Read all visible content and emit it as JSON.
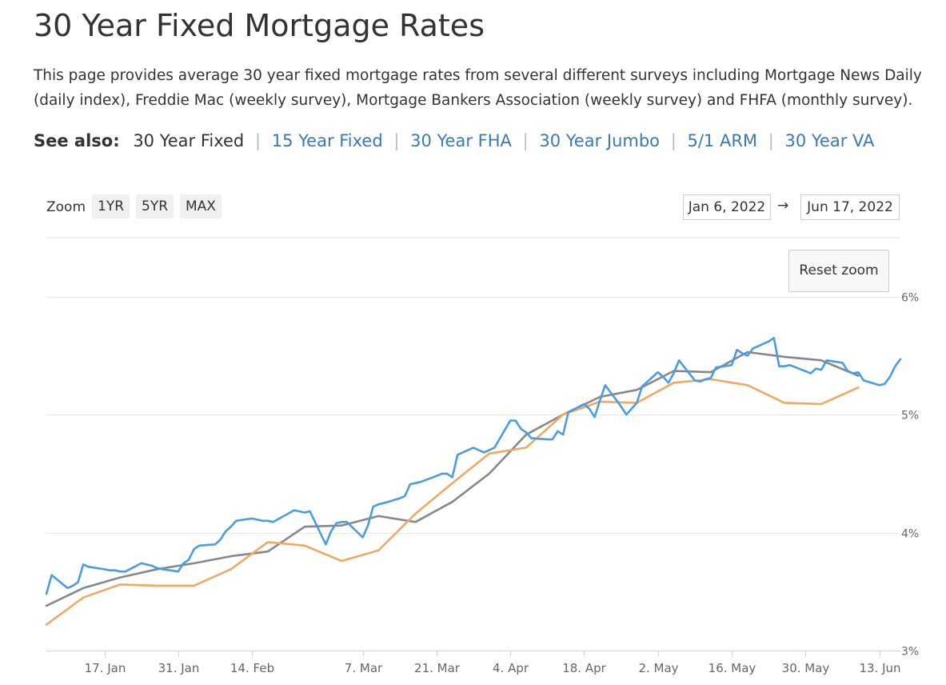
{
  "page": {
    "title": "30 Year Fixed Mortgage Rates",
    "intro": "This page provides average 30 year fixed mortgage rates from several different surveys including Mortgage News Daily (daily index), Freddie Mac (weekly survey), Mortgage Bankers Association (weekly survey) and FHFA (monthly survey)."
  },
  "see_also": {
    "label": "See also:",
    "current": "30 Year Fixed",
    "links": [
      "15 Year Fixed",
      "30 Year FHA",
      "30 Year Jumbo",
      "5/1 ARM",
      "30 Year VA"
    ]
  },
  "controls": {
    "zoom_label": "Zoom",
    "zoom_buttons": [
      "1YR",
      "5YR",
      "MAX"
    ],
    "date_from": "Jan 6, 2022",
    "date_arrow": "→",
    "date_to": "Jun 17, 2022",
    "reset_zoom": "Reset zoom"
  },
  "colors": {
    "daily": "#4a9de0",
    "weekly_gray": "#888888",
    "weekly_orange": "#f0a964",
    "grid": "#e6e6e6",
    "axis_text": "#666666"
  },
  "chart_data": {
    "type": "line",
    "x_range": [
      "2022-01-06",
      "2022-06-17"
    ],
    "ylim": [
      3,
      6.5
    ],
    "y_ticks": [
      {
        "value": 3,
        "label": "3%"
      },
      {
        "value": 4,
        "label": "4%"
      },
      {
        "value": 5,
        "label": "5%"
      },
      {
        "value": 6,
        "label": "6%"
      }
    ],
    "x_ticks": [
      {
        "date": "2022-01-17",
        "label": "17. Jan"
      },
      {
        "date": "2022-01-31",
        "label": "31. Jan"
      },
      {
        "date": "2022-02-14",
        "label": "14. Feb"
      },
      {
        "date": "2022-03-07",
        "label": "7. Mar"
      },
      {
        "date": "2022-03-21",
        "label": "21. Mar"
      },
      {
        "date": "2022-04-04",
        "label": "4. Apr"
      },
      {
        "date": "2022-04-18",
        "label": "18. Apr"
      },
      {
        "date": "2022-05-02",
        "label": "2. May"
      },
      {
        "date": "2022-05-16",
        "label": "16. May"
      },
      {
        "date": "2022-05-30",
        "label": "30. May"
      },
      {
        "date": "2022-06-13",
        "label": "13. Jun"
      }
    ],
    "grid": true,
    "series": [
      {
        "color": "#4a9de0",
        "points": [
          [
            "2022-01-06",
            3.48
          ],
          [
            "2022-01-07",
            3.64
          ],
          [
            "2022-01-10",
            3.53
          ],
          [
            "2022-01-11",
            3.55
          ],
          [
            "2022-01-12",
            3.58
          ],
          [
            "2022-01-13",
            3.73
          ],
          [
            "2022-01-14",
            3.71
          ],
          [
            "2022-01-17",
            3.69
          ],
          [
            "2022-01-18",
            3.68
          ],
          [
            "2022-01-19",
            3.68
          ],
          [
            "2022-01-20",
            3.67
          ],
          [
            "2022-01-21",
            3.67
          ],
          [
            "2022-01-24",
            3.74
          ],
          [
            "2022-01-25",
            3.73
          ],
          [
            "2022-01-26",
            3.72
          ],
          [
            "2022-01-27",
            3.7
          ],
          [
            "2022-01-28",
            3.69
          ],
          [
            "2022-01-31",
            3.67
          ],
          [
            "2022-02-01",
            3.74
          ],
          [
            "2022-02-02",
            3.77
          ],
          [
            "2022-02-03",
            3.86
          ],
          [
            "2022-02-04",
            3.89
          ],
          [
            "2022-02-07",
            3.9
          ],
          [
            "2022-02-08",
            3.94
          ],
          [
            "2022-02-09",
            4.01
          ],
          [
            "2022-02-10",
            4.05
          ],
          [
            "2022-02-11",
            4.1
          ],
          [
            "2022-02-14",
            4.12
          ],
          [
            "2022-02-15",
            4.11
          ],
          [
            "2022-02-16",
            4.1
          ],
          [
            "2022-02-17",
            4.1
          ],
          [
            "2022-02-18",
            4.09
          ],
          [
            "2022-02-22",
            4.19
          ],
          [
            "2022-02-23",
            4.18
          ],
          [
            "2022-02-24",
            4.17
          ],
          [
            "2022-02-25",
            4.18
          ],
          [
            "2022-02-28",
            3.9
          ],
          [
            "2022-03-01",
            4.01
          ],
          [
            "2022-03-02",
            4.08
          ],
          [
            "2022-03-03",
            4.09
          ],
          [
            "2022-03-04",
            4.09
          ],
          [
            "2022-03-07",
            3.96
          ],
          [
            "2022-03-08",
            4.06
          ],
          [
            "2022-03-09",
            4.22
          ],
          [
            "2022-03-10",
            4.24
          ],
          [
            "2022-03-11",
            4.25
          ],
          [
            "2022-03-14",
            4.29
          ],
          [
            "2022-03-15",
            4.31
          ],
          [
            "2022-03-16",
            4.41
          ],
          [
            "2022-03-17",
            4.42
          ],
          [
            "2022-03-18",
            4.43
          ],
          [
            "2022-03-21",
            4.48
          ],
          [
            "2022-03-22",
            4.5
          ],
          [
            "2022-03-23",
            4.5
          ],
          [
            "2022-03-24",
            4.47
          ],
          [
            "2022-03-25",
            4.66
          ],
          [
            "2022-03-28",
            4.72
          ],
          [
            "2022-03-29",
            4.7
          ],
          [
            "2022-03-30",
            4.68
          ],
          [
            "2022-03-31",
            4.7
          ],
          [
            "2022-04-01",
            4.72
          ],
          [
            "2022-04-04",
            4.95
          ],
          [
            "2022-04-05",
            4.95
          ],
          [
            "2022-04-06",
            4.88
          ],
          [
            "2022-04-07",
            4.85
          ],
          [
            "2022-04-08",
            4.8
          ],
          [
            "2022-04-11",
            4.79
          ],
          [
            "2022-04-12",
            4.79
          ],
          [
            "2022-04-13",
            4.86
          ],
          [
            "2022-04-14",
            4.83
          ],
          [
            "2022-04-15",
            5.02
          ],
          [
            "2022-04-18",
            5.09
          ],
          [
            "2022-04-19",
            5.05
          ],
          [
            "2022-04-20",
            4.98
          ],
          [
            "2022-04-21",
            5.12
          ],
          [
            "2022-04-22",
            5.25
          ],
          [
            "2022-04-25",
            5.07
          ],
          [
            "2022-04-26",
            5.0
          ],
          [
            "2022-04-27",
            5.05
          ],
          [
            "2022-04-28",
            5.1
          ],
          [
            "2022-04-29",
            5.24
          ],
          [
            "2022-05-02",
            5.36
          ],
          [
            "2022-05-03",
            5.32
          ],
          [
            "2022-05-04",
            5.27
          ],
          [
            "2022-05-05",
            5.35
          ],
          [
            "2022-05-06",
            5.46
          ],
          [
            "2022-05-09",
            5.29
          ],
          [
            "2022-05-10",
            5.28
          ],
          [
            "2022-05-11",
            5.3
          ],
          [
            "2022-05-12",
            5.31
          ],
          [
            "2022-05-13",
            5.4
          ],
          [
            "2022-05-16",
            5.42
          ],
          [
            "2022-05-17",
            5.55
          ],
          [
            "2022-05-18",
            5.52
          ],
          [
            "2022-05-19",
            5.5
          ],
          [
            "2022-05-20",
            5.56
          ],
          [
            "2022-05-23",
            5.62
          ],
          [
            "2022-05-24",
            5.65
          ],
          [
            "2022-05-25",
            5.41
          ],
          [
            "2022-05-26",
            5.41
          ],
          [
            "2022-05-27",
            5.42
          ],
          [
            "2022-05-31",
            5.35
          ],
          [
            "2022-06-01",
            5.39
          ],
          [
            "2022-06-02",
            5.38
          ],
          [
            "2022-06-03",
            5.46
          ],
          [
            "2022-06-06",
            5.44
          ],
          [
            "2022-06-07",
            5.37
          ],
          [
            "2022-06-08",
            5.35
          ],
          [
            "2022-06-09",
            5.36
          ],
          [
            "2022-06-10",
            5.29
          ],
          [
            "2022-06-13",
            5.25
          ],
          [
            "2022-06-14",
            5.26
          ],
          [
            "2022-06-15",
            5.32
          ],
          [
            "2022-06-16",
            5.41
          ],
          [
            "2022-06-17",
            5.47
          ]
        ]
      },
      {
        "color": "#888888",
        "points": [
          [
            "2022-01-06",
            3.38
          ],
          [
            "2022-01-13",
            3.53
          ],
          [
            "2022-01-20",
            3.62
          ],
          [
            "2022-01-27",
            3.69
          ],
          [
            "2022-02-03",
            3.74
          ],
          [
            "2022-02-10",
            3.8
          ],
          [
            "2022-02-17",
            3.84
          ],
          [
            "2022-02-24",
            4.05
          ],
          [
            "2022-03-03",
            4.06
          ],
          [
            "2022-03-10",
            4.14
          ],
          [
            "2022-03-17",
            4.09
          ],
          [
            "2022-03-24",
            4.26
          ],
          [
            "2022-03-31",
            4.5
          ],
          [
            "2022-04-07",
            4.83
          ],
          [
            "2022-04-14",
            5.0
          ],
          [
            "2022-04-21",
            5.15
          ],
          [
            "2022-04-28",
            5.21
          ],
          [
            "2022-05-05",
            5.37
          ],
          [
            "2022-05-12",
            5.36
          ],
          [
            "2022-05-19",
            5.53
          ],
          [
            "2022-05-26",
            5.49
          ],
          [
            "2022-06-02",
            5.46
          ],
          [
            "2022-06-09",
            5.33
          ]
        ]
      },
      {
        "color": "#f0a964",
        "points": [
          [
            "2022-01-06",
            3.22
          ],
          [
            "2022-01-13",
            3.45
          ],
          [
            "2022-01-20",
            3.56
          ],
          [
            "2022-01-27",
            3.55
          ],
          [
            "2022-02-03",
            3.55
          ],
          [
            "2022-02-10",
            3.69
          ],
          [
            "2022-02-17",
            3.92
          ],
          [
            "2022-02-24",
            3.89
          ],
          [
            "2022-03-03",
            3.76
          ],
          [
            "2022-03-10",
            3.85
          ],
          [
            "2022-03-17",
            4.16
          ],
          [
            "2022-03-24",
            4.42
          ],
          [
            "2022-03-31",
            4.67
          ],
          [
            "2022-04-07",
            4.72
          ],
          [
            "2022-04-14",
            5.0
          ],
          [
            "2022-04-21",
            5.11
          ],
          [
            "2022-04-28",
            5.1
          ],
          [
            "2022-05-05",
            5.27
          ],
          [
            "2022-05-12",
            5.3
          ],
          [
            "2022-05-19",
            5.25
          ],
          [
            "2022-05-26",
            5.1
          ],
          [
            "2022-06-02",
            5.09
          ],
          [
            "2022-06-09",
            5.23
          ]
        ]
      }
    ]
  }
}
